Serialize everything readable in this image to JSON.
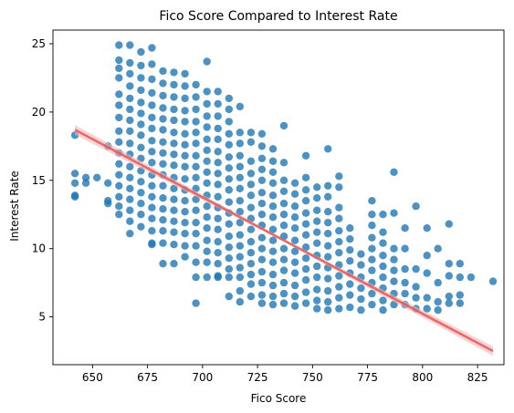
{
  "chart_data": {
    "type": "scatter",
    "title": "Fico Score Compared to Interest Rate",
    "xlabel": "Fico Score",
    "ylabel": "Interest Rate",
    "xlim": [
      632,
      837
    ],
    "ylim": [
      1.5,
      26.0
    ],
    "x_ticks": [
      650,
      675,
      700,
      725,
      750,
      775,
      800,
      825
    ],
    "y_ticks": [
      5,
      10,
      15,
      20,
      25
    ],
    "grid": false,
    "colors": {
      "points": "#1f77b4",
      "regression": "#e45756",
      "ci_band": "#f4b6b6"
    },
    "regression_line": {
      "start": [
        642,
        18.7
      ],
      "end": [
        832,
        2.5
      ]
    },
    "regression_ci_halfwidth": [
      0.35,
      0.1,
      0.35
    ],
    "points": [
      [
        642,
        18.3
      ],
      [
        642,
        15.5
      ],
      [
        642,
        14.8
      ],
      [
        642,
        13.8
      ],
      [
        642,
        13.9
      ],
      [
        647,
        14.8
      ],
      [
        647,
        15.2
      ],
      [
        652,
        15.2
      ],
      [
        657,
        17.5
      ],
      [
        657,
        14.8
      ],
      [
        657,
        13.5
      ],
      [
        657,
        13.3
      ],
      [
        662,
        24.9
      ],
      [
        662,
        23.8
      ],
      [
        662,
        23.2
      ],
      [
        662,
        22.5
      ],
      [
        662,
        21.3
      ],
      [
        662,
        20.5
      ],
      [
        662,
        19.6
      ],
      [
        662,
        18.6
      ],
      [
        662,
        17.8
      ],
      [
        662,
        17.0
      ],
      [
        662,
        16.2
      ],
      [
        662,
        15.4
      ],
      [
        662,
        14.6
      ],
      [
        662,
        13.8
      ],
      [
        662,
        13.1
      ],
      [
        662,
        12.5
      ],
      [
        667,
        24.9
      ],
      [
        667,
        23.6
      ],
      [
        667,
        22.8
      ],
      [
        667,
        21.9
      ],
      [
        667,
        21.0
      ],
      [
        667,
        20.2
      ],
      [
        667,
        19.4
      ],
      [
        667,
        18.6
      ],
      [
        667,
        17.7
      ],
      [
        667,
        16.9
      ],
      [
        667,
        16.0
      ],
      [
        667,
        15.2
      ],
      [
        667,
        14.4
      ],
      [
        667,
        13.6
      ],
      [
        667,
        12.8
      ],
      [
        667,
        12.0
      ],
      [
        667,
        11.1
      ],
      [
        672,
        24.4
      ],
      [
        672,
        23.4
      ],
      [
        672,
        22.5
      ],
      [
        672,
        21.6
      ],
      [
        672,
        20.7
      ],
      [
        672,
        19.9
      ],
      [
        672,
        19.1
      ],
      [
        672,
        18.3
      ],
      [
        672,
        17.4
      ],
      [
        672,
        16.6
      ],
      [
        672,
        15.7
      ],
      [
        672,
        14.9
      ],
      [
        672,
        14.1
      ],
      [
        672,
        13.3
      ],
      [
        672,
        12.5
      ],
      [
        672,
        11.6
      ],
      [
        677,
        24.7
      ],
      [
        677,
        23.5
      ],
      [
        677,
        22.4
      ],
      [
        677,
        21.4
      ],
      [
        677,
        20.5
      ],
      [
        677,
        19.6
      ],
      [
        677,
        18.8
      ],
      [
        677,
        17.9
      ],
      [
        677,
        17.1
      ],
      [
        677,
        16.3
      ],
      [
        677,
        15.4
      ],
      [
        677,
        14.6
      ],
      [
        677,
        13.8
      ],
      [
        677,
        13.0
      ],
      [
        677,
        12.2
      ],
      [
        677,
        11.3
      ],
      [
        677,
        10.4
      ],
      [
        677,
        10.3
      ],
      [
        682,
        23.0
      ],
      [
        682,
        22.1
      ],
      [
        682,
        21.2
      ],
      [
        682,
        20.3
      ],
      [
        682,
        19.5
      ],
      [
        682,
        18.7
      ],
      [
        682,
        17.8
      ],
      [
        682,
        17.0
      ],
      [
        682,
        16.2
      ],
      [
        682,
        15.4
      ],
      [
        682,
        14.6
      ],
      [
        682,
        13.7
      ],
      [
        682,
        12.9
      ],
      [
        682,
        12.1
      ],
      [
        682,
        11.3
      ],
      [
        682,
        10.4
      ],
      [
        682,
        8.9
      ],
      [
        687,
        22.9
      ],
      [
        687,
        22.0
      ],
      [
        687,
        21.1
      ],
      [
        687,
        20.2
      ],
      [
        687,
        19.4
      ],
      [
        687,
        18.5
      ],
      [
        687,
        17.7
      ],
      [
        687,
        16.9
      ],
      [
        687,
        16.1
      ],
      [
        687,
        15.2
      ],
      [
        687,
        14.4
      ],
      [
        687,
        13.6
      ],
      [
        687,
        12.8
      ],
      [
        687,
        12.0
      ],
      [
        687,
        11.2
      ],
      [
        687,
        10.3
      ],
      [
        687,
        8.9
      ],
      [
        692,
        22.8
      ],
      [
        692,
        21.9
      ],
      [
        692,
        21.0
      ],
      [
        692,
        20.1
      ],
      [
        692,
        19.3
      ],
      [
        692,
        18.4
      ],
      [
        692,
        17.6
      ],
      [
        692,
        16.8
      ],
      [
        692,
        16.0
      ],
      [
        692,
        15.1
      ],
      [
        692,
        14.3
      ],
      [
        692,
        13.5
      ],
      [
        692,
        12.7
      ],
      [
        692,
        11.9
      ],
      [
        692,
        11.1
      ],
      [
        692,
        10.2
      ],
      [
        692,
        9.4
      ],
      [
        697,
        22.0
      ],
      [
        697,
        21.1
      ],
      [
        697,
        20.2
      ],
      [
        697,
        19.3
      ],
      [
        697,
        18.5
      ],
      [
        697,
        17.7
      ],
      [
        697,
        16.8
      ],
      [
        697,
        16.0
      ],
      [
        697,
        15.2
      ],
      [
        697,
        14.4
      ],
      [
        697,
        13.6
      ],
      [
        697,
        12.8
      ],
      [
        697,
        11.9
      ],
      [
        697,
        11.1
      ],
      [
        697,
        10.2
      ],
      [
        697,
        9.0
      ],
      [
        697,
        7.9
      ],
      [
        697,
        6.0
      ],
      [
        702,
        23.7
      ],
      [
        702,
        21.5
      ],
      [
        702,
        20.6
      ],
      [
        702,
        19.7
      ],
      [
        702,
        18.9
      ],
      [
        702,
        18.0
      ],
      [
        702,
        17.2
      ],
      [
        702,
        16.4
      ],
      [
        702,
        15.6
      ],
      [
        702,
        14.8
      ],
      [
        702,
        13.9
      ],
      [
        702,
        13.1
      ],
      [
        702,
        12.3
      ],
      [
        702,
        11.5
      ],
      [
        702,
        10.6
      ],
      [
        702,
        9.8
      ],
      [
        702,
        9.0
      ],
      [
        702,
        7.9
      ],
      [
        707,
        21.5
      ],
      [
        707,
        20.6
      ],
      [
        707,
        19.7
      ],
      [
        707,
        18.8
      ],
      [
        707,
        18.0
      ],
      [
        707,
        17.1
      ],
      [
        707,
        16.3
      ],
      [
        707,
        15.5
      ],
      [
        707,
        14.7
      ],
      [
        707,
        13.8
      ],
      [
        707,
        13.0
      ],
      [
        707,
        12.2
      ],
      [
        707,
        11.4
      ],
      [
        707,
        10.5
      ],
      [
        707,
        9.7
      ],
      [
        707,
        8.9
      ],
      [
        707,
        8.0
      ],
      [
        707,
        7.9
      ],
      [
        712,
        21.0
      ],
      [
        712,
        20.2
      ],
      [
        712,
        19.3
      ],
      [
        712,
        18.4
      ],
      [
        712,
        17.6
      ],
      [
        712,
        16.7
      ],
      [
        712,
        15.9
      ],
      [
        712,
        15.1
      ],
      [
        712,
        14.3
      ],
      [
        712,
        13.4
      ],
      [
        712,
        12.6
      ],
      [
        712,
        11.8
      ],
      [
        712,
        10.9
      ],
      [
        712,
        10.1
      ],
      [
        712,
        9.3
      ],
      [
        712,
        8.5
      ],
      [
        712,
        7.9
      ],
      [
        712,
        6.5
      ],
      [
        717,
        20.4
      ],
      [
        717,
        18.5
      ],
      [
        717,
        17.7
      ],
      [
        717,
        16.8
      ],
      [
        717,
        16.0
      ],
      [
        717,
        15.2
      ],
      [
        717,
        14.4
      ],
      [
        717,
        13.5
      ],
      [
        717,
        12.7
      ],
      [
        717,
        11.9
      ],
      [
        717,
        11.0
      ],
      [
        717,
        10.2
      ],
      [
        717,
        9.4
      ],
      [
        717,
        8.6
      ],
      [
        717,
        7.9
      ],
      [
        717,
        6.9
      ],
      [
        717,
        6.1
      ],
      [
        722,
        18.5
      ],
      [
        722,
        17.8
      ],
      [
        722,
        16.4
      ],
      [
        722,
        15.5
      ],
      [
        722,
        14.7
      ],
      [
        722,
        13.9
      ],
      [
        722,
        13.0
      ],
      [
        722,
        12.2
      ],
      [
        722,
        11.4
      ],
      [
        722,
        10.5
      ],
      [
        722,
        9.7
      ],
      [
        722,
        8.9
      ],
      [
        722,
        8.1
      ],
      [
        722,
        7.4
      ],
      [
        722,
        6.5
      ],
      [
        727,
        18.4
      ],
      [
        727,
        17.5
      ],
      [
        727,
        16.6
      ],
      [
        727,
        15.8
      ],
      [
        727,
        15.0
      ],
      [
        727,
        14.1
      ],
      [
        727,
        13.3
      ],
      [
        727,
        12.5
      ],
      [
        727,
        11.7
      ],
      [
        727,
        10.8
      ],
      [
        727,
        10.0
      ],
      [
        727,
        9.2
      ],
      [
        727,
        8.3
      ],
      [
        727,
        7.5
      ],
      [
        727,
        6.6
      ],
      [
        727,
        6.0
      ],
      [
        732,
        17.3
      ],
      [
        732,
        16.4
      ],
      [
        732,
        15.6
      ],
      [
        732,
        14.8
      ],
      [
        732,
        13.9
      ],
      [
        732,
        13.1
      ],
      [
        732,
        12.3
      ],
      [
        732,
        11.4
      ],
      [
        732,
        10.6
      ],
      [
        732,
        9.8
      ],
      [
        732,
        9.0
      ],
      [
        732,
        8.1
      ],
      [
        732,
        7.3
      ],
      [
        732,
        6.5
      ],
      [
        732,
        5.9
      ],
      [
        737,
        19.0
      ],
      [
        737,
        16.3
      ],
      [
        737,
        15.0
      ],
      [
        737,
        14.2
      ],
      [
        737,
        13.3
      ],
      [
        737,
        12.5
      ],
      [
        737,
        11.7
      ],
      [
        737,
        10.9
      ],
      [
        737,
        10.0
      ],
      [
        737,
        9.2
      ],
      [
        737,
        8.4
      ],
      [
        737,
        7.5
      ],
      [
        737,
        6.7
      ],
      [
        737,
        6.0
      ],
      [
        742,
        14.8
      ],
      [
        742,
        14.0
      ],
      [
        742,
        13.1
      ],
      [
        742,
        12.3
      ],
      [
        742,
        11.5
      ],
      [
        742,
        10.6
      ],
      [
        742,
        9.8
      ],
      [
        742,
        9.0
      ],
      [
        742,
        8.2
      ],
      [
        742,
        7.3
      ],
      [
        742,
        6.5
      ],
      [
        742,
        5.8
      ],
      [
        747,
        16.8
      ],
      [
        747,
        15.2
      ],
      [
        747,
        14.3
      ],
      [
        747,
        13.5
      ],
      [
        747,
        12.6
      ],
      [
        747,
        11.8
      ],
      [
        747,
        11.0
      ],
      [
        747,
        10.1
      ],
      [
        747,
        9.3
      ],
      [
        747,
        8.5
      ],
      [
        747,
        7.7
      ],
      [
        747,
        6.8
      ],
      [
        747,
        6.0
      ],
      [
        752,
        14.5
      ],
      [
        752,
        13.7
      ],
      [
        752,
        12.8
      ],
      [
        752,
        12.0
      ],
      [
        752,
        11.2
      ],
      [
        752,
        10.4
      ],
      [
        752,
        9.5
      ],
      [
        752,
        8.7
      ],
      [
        752,
        7.9
      ],
      [
        752,
        7.0
      ],
      [
        752,
        6.2
      ],
      [
        752,
        5.6
      ],
      [
        757,
        17.3
      ],
      [
        757,
        14.6
      ],
      [
        757,
        13.8
      ],
      [
        757,
        12.7
      ],
      [
        757,
        11.9
      ],
      [
        757,
        11.1
      ],
      [
        757,
        10.2
      ],
      [
        757,
        9.4
      ],
      [
        757,
        8.6
      ],
      [
        757,
        7.8
      ],
      [
        757,
        6.9
      ],
      [
        757,
        6.1
      ],
      [
        757,
        5.5
      ],
      [
        762,
        15.3
      ],
      [
        762,
        14.5
      ],
      [
        762,
        13.0
      ],
      [
        762,
        12.2
      ],
      [
        762,
        11.3
      ],
      [
        762,
        10.5
      ],
      [
        762,
        9.7
      ],
      [
        762,
        8.8
      ],
      [
        762,
        8.0
      ],
      [
        762,
        7.2
      ],
      [
        762,
        6.4
      ],
      [
        762,
        5.6
      ],
      [
        767,
        11.5
      ],
      [
        767,
        10.7
      ],
      [
        767,
        9.9
      ],
      [
        767,
        9.1
      ],
      [
        767,
        8.2
      ],
      [
        767,
        7.4
      ],
      [
        767,
        6.6
      ],
      [
        767,
        5.7
      ],
      [
        772,
        9.6
      ],
      [
        772,
        8.8
      ],
      [
        772,
        7.9
      ],
      [
        772,
        7.1
      ],
      [
        772,
        6.3
      ],
      [
        772,
        5.5
      ],
      [
        777,
        13.5
      ],
      [
        777,
        12.5
      ],
      [
        777,
        11.7
      ],
      [
        777,
        10.8
      ],
      [
        777,
        10.0
      ],
      [
        777,
        9.2
      ],
      [
        777,
        8.4
      ],
      [
        777,
        7.5
      ],
      [
        777,
        6.7
      ],
      [
        777,
        5.9
      ],
      [
        782,
        12.5
      ],
      [
        782,
        11.2
      ],
      [
        782,
        10.4
      ],
      [
        782,
        9.5
      ],
      [
        782,
        8.7
      ],
      [
        782,
        7.9
      ],
      [
        782,
        7.1
      ],
      [
        782,
        6.2
      ],
      [
        782,
        5.5
      ],
      [
        787,
        15.6
      ],
      [
        787,
        12.6
      ],
      [
        787,
        10.0
      ],
      [
        787,
        9.2
      ],
      [
        787,
        8.4
      ],
      [
        787,
        7.6
      ],
      [
        787,
        6.7
      ],
      [
        787,
        5.9
      ],
      [
        792,
        11.5
      ],
      [
        792,
        10.0
      ],
      [
        792,
        8.5
      ],
      [
        792,
        7.5
      ],
      [
        792,
        6.7
      ],
      [
        792,
        5.9
      ],
      [
        797,
        13.1
      ],
      [
        797,
        8.5
      ],
      [
        797,
        7.2
      ],
      [
        797,
        6.4
      ],
      [
        797,
        5.6
      ],
      [
        802,
        11.5
      ],
      [
        802,
        9.5
      ],
      [
        802,
        8.2
      ],
      [
        802,
        6.4
      ],
      [
        802,
        5.6
      ],
      [
        807,
        10.0
      ],
      [
        807,
        7.5
      ],
      [
        807,
        6.1
      ],
      [
        807,
        5.5
      ],
      [
        812,
        11.8
      ],
      [
        812,
        8.9
      ],
      [
        812,
        8.0
      ],
      [
        812,
        6.5
      ],
      [
        812,
        6.0
      ],
      [
        817,
        8.9
      ],
      [
        817,
        7.9
      ],
      [
        817,
        6.6
      ],
      [
        817,
        6.0
      ],
      [
        822,
        7.9
      ],
      [
        832,
        7.6
      ]
    ]
  }
}
